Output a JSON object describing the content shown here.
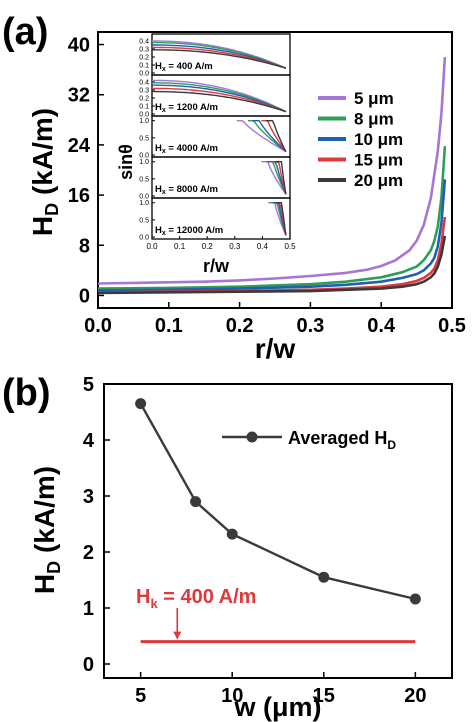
{
  "chart_data": [
    {
      "panel_label": "(a)",
      "type": "line",
      "xlabel": "r/w",
      "ylabel": "H_D (kA/m)",
      "xlim": [
        0.0,
        0.5
      ],
      "ylim": [
        -2,
        42
      ],
      "xticks": [
        0.0,
        0.1,
        0.2,
        0.3,
        0.4,
        0.5
      ],
      "xtick_labels": [
        "0.0",
        "0.1",
        "0.2",
        "0.3",
        "0.4",
        "0.5"
      ],
      "yticks": [
        0,
        8,
        16,
        24,
        32,
        40
      ],
      "ytick_labels": [
        "0",
        "8",
        "16",
        "24",
        "32",
        "40"
      ],
      "legend_position": "right",
      "series": [
        {
          "name": "5  μm",
          "color": "#a675d8",
          "x": [
            0.0,
            0.05,
            0.1,
            0.15,
            0.2,
            0.25,
            0.3,
            0.35,
            0.38,
            0.4,
            0.42,
            0.44,
            0.45,
            0.46,
            0.47,
            0.48,
            0.485,
            0.49
          ],
          "y": [
            1.9,
            2.0,
            2.1,
            2.2,
            2.4,
            2.7,
            3.1,
            3.6,
            4.1,
            4.7,
            5.6,
            7.2,
            8.7,
            11.2,
            15.5,
            23.0,
            29.0,
            38.0
          ]
        },
        {
          "name": "8  μm",
          "color": "#2e9e57",
          "x": [
            0.0,
            0.1,
            0.2,
            0.3,
            0.35,
            0.4,
            0.43,
            0.45,
            0.46,
            0.47,
            0.475,
            0.48,
            0.485,
            0.49
          ],
          "y": [
            1.1,
            1.2,
            1.4,
            1.8,
            2.2,
            2.9,
            3.7,
            4.6,
            5.6,
            7.2,
            8.7,
            11.0,
            15.5,
            23.8
          ]
        },
        {
          "name": "10 μm",
          "color": "#1f5fb4",
          "x": [
            0.0,
            0.1,
            0.2,
            0.3,
            0.35,
            0.4,
            0.43,
            0.45,
            0.46,
            0.47,
            0.475,
            0.48,
            0.485,
            0.49
          ],
          "y": [
            0.8,
            0.9,
            1.1,
            1.4,
            1.7,
            2.2,
            2.8,
            3.4,
            4.0,
            5.1,
            6.0,
            7.8,
            11.5,
            18.5
          ]
        },
        {
          "name": "15 μm",
          "color": "#e0383b",
          "x": [
            0.0,
            0.1,
            0.2,
            0.3,
            0.35,
            0.4,
            0.43,
            0.45,
            0.46,
            0.47,
            0.475,
            0.48,
            0.485,
            0.49
          ],
          "y": [
            0.5,
            0.6,
            0.7,
            0.9,
            1.1,
            1.4,
            1.8,
            2.3,
            2.8,
            3.6,
            4.3,
            5.6,
            8.2,
            12.5
          ]
        },
        {
          "name": "20 μm",
          "color": "#3a3a3a",
          "x": [
            0.0,
            0.1,
            0.2,
            0.3,
            0.35,
            0.4,
            0.43,
            0.45,
            0.46,
            0.47,
            0.475,
            0.48,
            0.485,
            0.49
          ],
          "y": [
            0.4,
            0.5,
            0.6,
            0.7,
            0.9,
            1.1,
            1.4,
            1.8,
            2.2,
            2.9,
            3.5,
            4.6,
            6.5,
            9.5
          ]
        }
      ],
      "inset": {
        "type": "line",
        "xlabel": "r/w",
        "ylabel": "sinθ",
        "xlim": [
          0.0,
          0.5
        ],
        "xticks": [
          0.0,
          0.1,
          0.2,
          0.3,
          0.4,
          0.5
        ],
        "xtick_labels": [
          "0.0",
          "0.1",
          "0.2",
          "0.3",
          "0.4",
          "0.5"
        ],
        "subpanels": [
          {
            "label": "H",
            "label_sub": "x",
            "label_rest": " = 400 A/m",
            "ylim": [
              0.0,
              0.45
            ],
            "yticks": [
              0.0,
              0.1,
              0.2,
              0.3,
              0.4
            ],
            "ytick_labels": [
              "0.0",
              "0.1",
              "0.2",
              "0.3",
              "0.4"
            ],
            "model": "smooth",
            "start": [
              0.4,
              0.38,
              0.35,
              0.32,
              0.29
            ],
            "end": 0.06
          },
          {
            "label": "H",
            "label_sub": "x",
            "label_rest": " = 1200 A/m",
            "ylim": [
              0.0,
              0.45
            ],
            "yticks": [
              0.0,
              0.1,
              0.2,
              0.3,
              0.4
            ],
            "ytick_labels": [
              "0.0",
              "0.1",
              "0.2",
              "0.3",
              "0.4"
            ],
            "model": "smooth",
            "start": [
              0.42,
              0.39,
              0.36,
              0.32,
              0.28
            ],
            "end": 0.03
          },
          {
            "label": "H",
            "label_sub": "x",
            "label_rest": " = 4000 A/m",
            "ylim": [
              0.0,
              1.05
            ],
            "yticks": [
              0.0,
              0.5,
              1.0
            ],
            "ytick_labels": [
              "0.0",
              "0.5",
              "1.0"
            ],
            "model": "drop",
            "start": [
              1.0,
              1.0,
              1.0,
              1.0,
              1.0
            ],
            "end": 0.1,
            "knee": [
              0.33,
              0.37,
              0.39,
              0.42,
              0.44
            ]
          },
          {
            "label": "H",
            "label_sub": "x",
            "label_rest": " = 8000 A/m",
            "ylim": [
              0.0,
              1.05
            ],
            "yticks": [
              0.0,
              0.5,
              1.0
            ],
            "ytick_labels": [
              "0.0",
              "0.5",
              "1.0"
            ],
            "model": "drop",
            "start": [
              1.0,
              1.0,
              1.0,
              1.0,
              1.0
            ],
            "end": 0.05,
            "knee": [
              0.42,
              0.44,
              0.45,
              0.46,
              0.47
            ]
          },
          {
            "label": "H",
            "label_sub": "x",
            "label_rest": " = 12000 A/m",
            "ylim": [
              0.0,
              1.05
            ],
            "yticks": [
              0.0,
              0.5,
              1.0
            ],
            "ytick_labels": [
              "0.0",
              "0.5",
              "1.0"
            ],
            "model": "drop",
            "start": [
              1.0,
              1.0,
              1.0,
              1.0,
              1.0
            ],
            "end": 0.05,
            "knee": [
              0.445,
              0.455,
              0.46,
              0.467,
              0.472
            ]
          }
        ]
      }
    },
    {
      "panel_label": "(b)",
      "type": "line",
      "xlabel": "w (μm)",
      "ylabel": "H_D (kA/m)",
      "xlim": [
        3,
        22
      ],
      "ylim": [
        -0.25,
        5.0
      ],
      "xticks": [
        5,
        10,
        15,
        20
      ],
      "xtick_labels": [
        "5",
        "10",
        "15",
        "20"
      ],
      "yticks": [
        0,
        1,
        2,
        3,
        4,
        5
      ],
      "ytick_labels": [
        "0",
        "1",
        "2",
        "3",
        "4",
        "5"
      ],
      "legend_position": "top-right",
      "series": [
        {
          "name": "Averaged H",
          "name_sub": "D",
          "color": "#3a3a3a",
          "marker": "circle",
          "x": [
            5,
            8,
            10,
            15,
            20
          ],
          "y": [
            4.65,
            2.9,
            2.32,
            1.55,
            1.16
          ]
        },
        {
          "name": "H",
          "name_sub": "k",
          "name_rest": " = 400 A/m",
          "color": "#e0383b",
          "marker": "none",
          "x": [
            5,
            20
          ],
          "y": [
            0.4,
            0.4
          ]
        }
      ],
      "annotation": {
        "text": "H",
        "text_sub": "k",
        "text_rest": " = 400 A/m",
        "color": "#e0383b",
        "arrow_to": [
          7,
          0.4
        ]
      }
    }
  ]
}
